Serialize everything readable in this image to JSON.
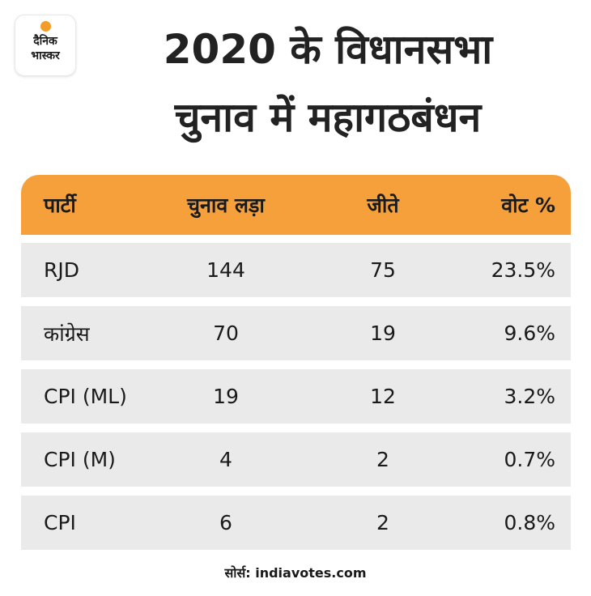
{
  "brand": {
    "line1": "दैनिक",
    "line2": "भास्कर"
  },
  "title": {
    "line1": "2020 के विधानसभा",
    "line2": "चुनाव में महागठबंधन"
  },
  "chart_data": {
    "type": "table",
    "columns": [
      "पार्टी",
      "चुनाव लड़ा",
      "जीते",
      "वोट %"
    ],
    "rows": [
      {
        "party": "RJD",
        "contested": "144",
        "won": "75",
        "vote": "23.5%"
      },
      {
        "party": "कांग्रेस",
        "contested": "70",
        "won": "19",
        "vote": "9.6%"
      },
      {
        "party": "CPI (ML)",
        "contested": "19",
        "won": "12",
        "vote": "3.2%"
      },
      {
        "party": "CPI (M)",
        "contested": "4",
        "won": "2",
        "vote": "0.7%"
      },
      {
        "party": "CPI",
        "contested": "6",
        "won": "2",
        "vote": "0.8%"
      }
    ]
  },
  "source": "सोर्स: indiavotes.com",
  "colors": {
    "header": "#f6a03c",
    "row": "#eaeaea",
    "logo_sun": "#f39c2a"
  }
}
